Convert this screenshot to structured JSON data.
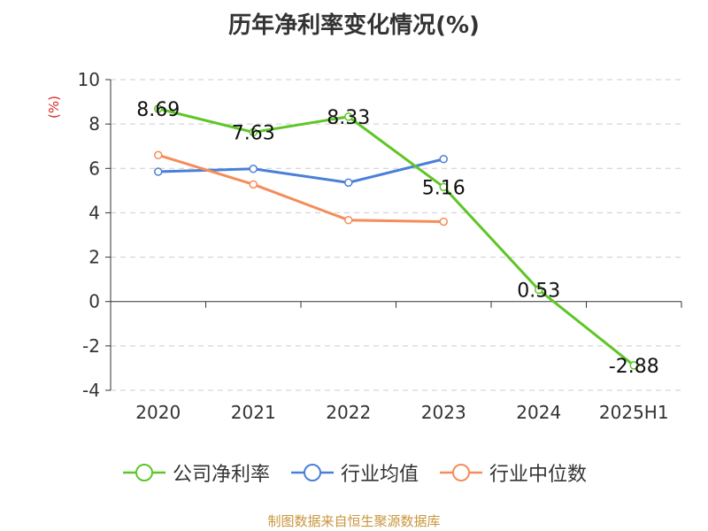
{
  "title": "历年净利率变化情况(%)",
  "y_unit": "(%)",
  "footer": "制图数据来自恒生聚源数据库",
  "colors": {
    "company": "#5ec626",
    "industry_avg": "#4a7fd8",
    "industry_median": "#f58c5a",
    "axis": "#333333",
    "grid": "#cccccc",
    "unit": "#d62728",
    "footer": "#c8963c"
  },
  "legend": [
    {
      "label": "公司净利率",
      "color_key": "company"
    },
    {
      "label": "行业均值",
      "color_key": "industry_avg"
    },
    {
      "label": "行业中位数",
      "color_key": "industry_median"
    }
  ],
  "chart_data": {
    "type": "line",
    "categories": [
      "2020",
      "2021",
      "2022",
      "2023",
      "2024",
      "2025H1"
    ],
    "ylim": [
      -4,
      10
    ],
    "yticks": [
      -4,
      -2,
      0,
      2,
      4,
      6,
      8,
      10
    ],
    "grid": true,
    "legend_position": "bottom",
    "series": [
      {
        "name": "公司净利率",
        "color_key": "company",
        "values": [
          8.69,
          7.63,
          8.33,
          5.16,
          0.53,
          -2.88
        ],
        "labels": [
          "8.69",
          "7.63",
          "8.33",
          "5.16",
          "0.53",
          "-2.88"
        ]
      },
      {
        "name": "行业均值",
        "color_key": "industry_avg",
        "values": [
          5.85,
          5.98,
          5.36,
          6.42,
          null,
          null
        ]
      },
      {
        "name": "行业中位数",
        "color_key": "industry_median",
        "values": [
          6.6,
          5.28,
          3.67,
          3.6,
          null,
          null
        ]
      }
    ]
  }
}
